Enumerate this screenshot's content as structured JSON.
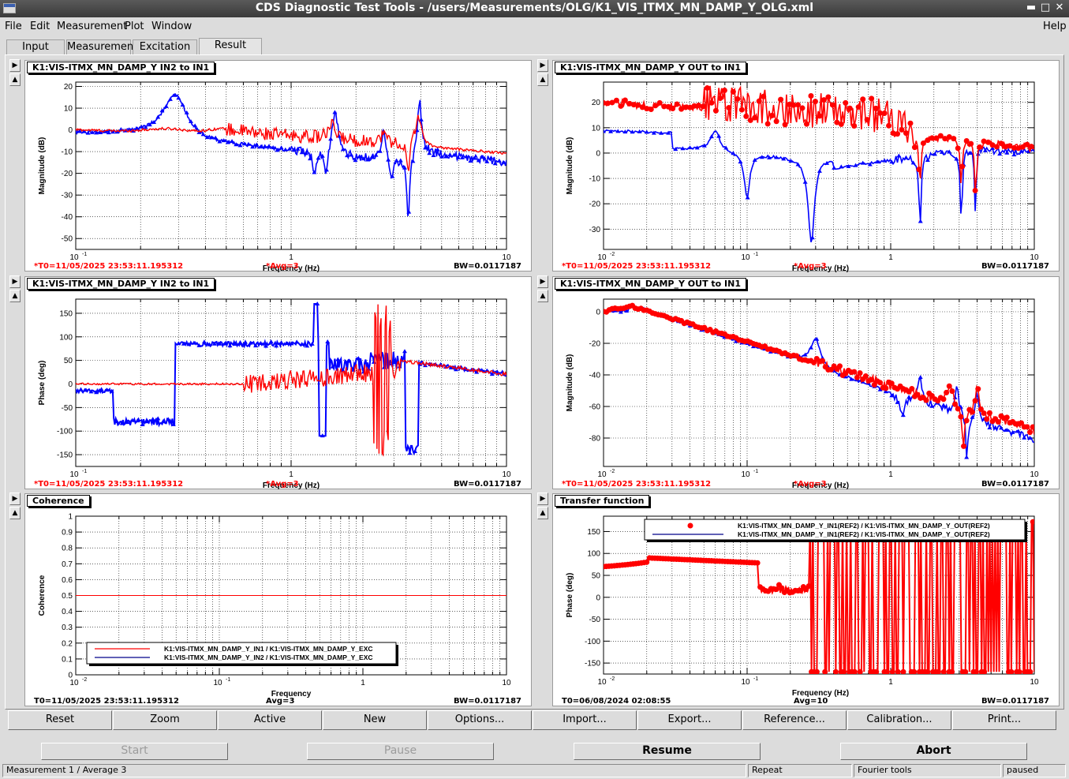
{
  "window": {
    "title": "CDS Diagnostic Test Tools - /users/Measurements/OLG/K1_VIS_ITMX_MN_DAMP_Y_OLG.xml"
  },
  "menu": [
    "File",
    "Edit",
    "Measurement",
    "Plot",
    "Window"
  ],
  "help": "Help",
  "tabs": [
    "Input",
    "Measurement",
    "Excitation",
    "Result"
  ],
  "active_tab": "Result",
  "footer_blocks": {
    "a": {
      "t0": "*T0=11/05/2025 23:53:11.195312",
      "avg": "*Avg=3",
      "bw": "BW=0.0117187",
      "red": true
    },
    "c": {
      "t0": "T0=11/05/2025 23:53:11.195312",
      "avg": "Avg=3",
      "bw": "BW=0.0117187",
      "red": false
    },
    "r": {
      "t0": "T0=06/08/2024 02:08:55",
      "avg": "Avg=10",
      "bw": "BW=0.0117187",
      "red": false
    }
  },
  "panels": [
    {
      "id": "p1",
      "title": "K1:VIS-ITMX_MN_DAMP_Y IN2 to IN1",
      "ylabel": "Magnitude (dB)",
      "xlabel": "Frequency (Hz)",
      "footer": "a"
    },
    {
      "id": "p2",
      "title": "K1:VIS-ITMX_MN_DAMP_Y OUT to IN1",
      "ylabel": "Magnitude (dB)",
      "xlabel": "Frequency (Hz)",
      "footer": "a"
    },
    {
      "id": "p3",
      "title": "K1:VIS-ITMX_MN_DAMP_Y IN2 to IN1",
      "ylabel": "Phase (deg)",
      "xlabel": "Frequency (Hz)",
      "footer": "a"
    },
    {
      "id": "p4",
      "title": "K1:VIS-ITMX_MN_DAMP_Y OUT to IN1",
      "ylabel": "Magnitude (dB)",
      "xlabel": "Frequency (Hz)",
      "footer": "a"
    },
    {
      "id": "p5",
      "title": "Coherence",
      "ylabel": "Coherence",
      "xlabel": "Frequency",
      "footer": "c"
    },
    {
      "id": "p6",
      "title": "Transfer function",
      "ylabel": "Phase (deg)",
      "xlabel": "Frequency (Hz)",
      "footer": "r"
    }
  ],
  "chart_data": [
    {
      "type": "line",
      "panel": "p1",
      "xscale": "log",
      "xlim": [
        0.1,
        10
      ],
      "ylim": [
        -55,
        22
      ],
      "yticks": [
        20,
        10,
        0,
        -10,
        -20,
        -30,
        -40,
        -50
      ],
      "xticks": [
        0.1,
        1,
        10
      ],
      "grid": true,
      "colors": {
        "red": "#ff0000",
        "blue": "#0000ff"
      }
    },
    {
      "type": "line",
      "panel": "p2",
      "xscale": "log",
      "xlim": [
        0.01,
        10
      ],
      "ylim": [
        -38,
        28
      ],
      "yticks": [
        20,
        10,
        0,
        -10,
        -20,
        -30
      ],
      "xticks": [
        0.01,
        0.1,
        1,
        10
      ],
      "grid": true,
      "colors": {
        "red": "#ff0000",
        "blue": "#0000ff"
      }
    },
    {
      "type": "line",
      "panel": "p3",
      "xscale": "log",
      "xlim": [
        0.1,
        10
      ],
      "ylim": [
        -175,
        180
      ],
      "yticks": [
        150,
        100,
        50,
        0,
        -50,
        -100,
        -150
      ],
      "xticks": [
        0.1,
        1,
        10
      ],
      "grid": true,
      "colors": {
        "red": "#ff0000",
        "blue": "#0000ff"
      }
    },
    {
      "type": "line",
      "panel": "p4",
      "xscale": "log",
      "xlim": [
        0.01,
        10
      ],
      "ylim": [
        -98,
        8
      ],
      "yticks": [
        0,
        -20,
        -40,
        -60,
        -80
      ],
      "xticks": [
        0.01,
        0.1,
        1,
        10
      ],
      "grid": true,
      "colors": {
        "red": "#ff0000",
        "blue": "#0000ff"
      }
    },
    {
      "type": "line",
      "panel": "p5",
      "xscale": "log",
      "xlim": [
        0.01,
        10
      ],
      "ylim": [
        0,
        1
      ],
      "yticks": [
        1,
        0.9,
        0.8,
        0.7,
        0.6,
        0.5,
        0.4,
        0.3,
        0.2,
        0.1,
        0
      ],
      "xticks": [
        0.01,
        0.1,
        1,
        10
      ],
      "grid": true,
      "legend": {
        "position": "bottom-left",
        "entries": [
          {
            "label": "K1:VIS-ITMX_MN_DAMP_Y_IN1 / K1:VIS-ITMX_MN_DAMP_Y_EXC",
            "color": "#ff0000"
          },
          {
            "label": "K1:VIS-ITMX_MN_DAMP_Y_IN2 / K1:VIS-ITMX_MN_DAMP_Y_EXC",
            "color": "#00008b"
          }
        ]
      }
    },
    {
      "type": "line",
      "panel": "p6",
      "xscale": "log",
      "xlim": [
        0.01,
        10
      ],
      "ylim": [
        -175,
        185
      ],
      "yticks": [
        150,
        100,
        50,
        0,
        -50,
        -100,
        -150
      ],
      "xticks": [
        0.01,
        0.1,
        1,
        10
      ],
      "grid": true,
      "legend": {
        "position": "top-right",
        "entries": [
          {
            "label": "K1:VIS-ITMX_MN_DAMP_Y_IN1(REF2) / K1:VIS-ITMX_MN_DAMP_Y_OUT(REF2)",
            "color": "#ff0000",
            "marker": "circle"
          },
          {
            "label": "K1:VIS-ITMX_MN_DAMP_Y_IN1(REF2) / K1:VIS-ITMX_MN_DAMP_Y_OUT(REF2)",
            "color": "#00008b"
          }
        ]
      }
    }
  ],
  "toolbar": [
    "Reset",
    "Zoom",
    "Active",
    "New",
    "Options...",
    "Import...",
    "Export...",
    "Reference...",
    "Calibration...",
    "Print..."
  ],
  "controls": [
    {
      "label": "Start",
      "enabled": false
    },
    {
      "label": "Pause",
      "enabled": false
    },
    {
      "label": "Resume",
      "enabled": true
    },
    {
      "label": "Abort",
      "enabled": true
    }
  ],
  "status": [
    "Measurement 1 / Average 3",
    "Repeat",
    "Fourier tools",
    "paused"
  ]
}
